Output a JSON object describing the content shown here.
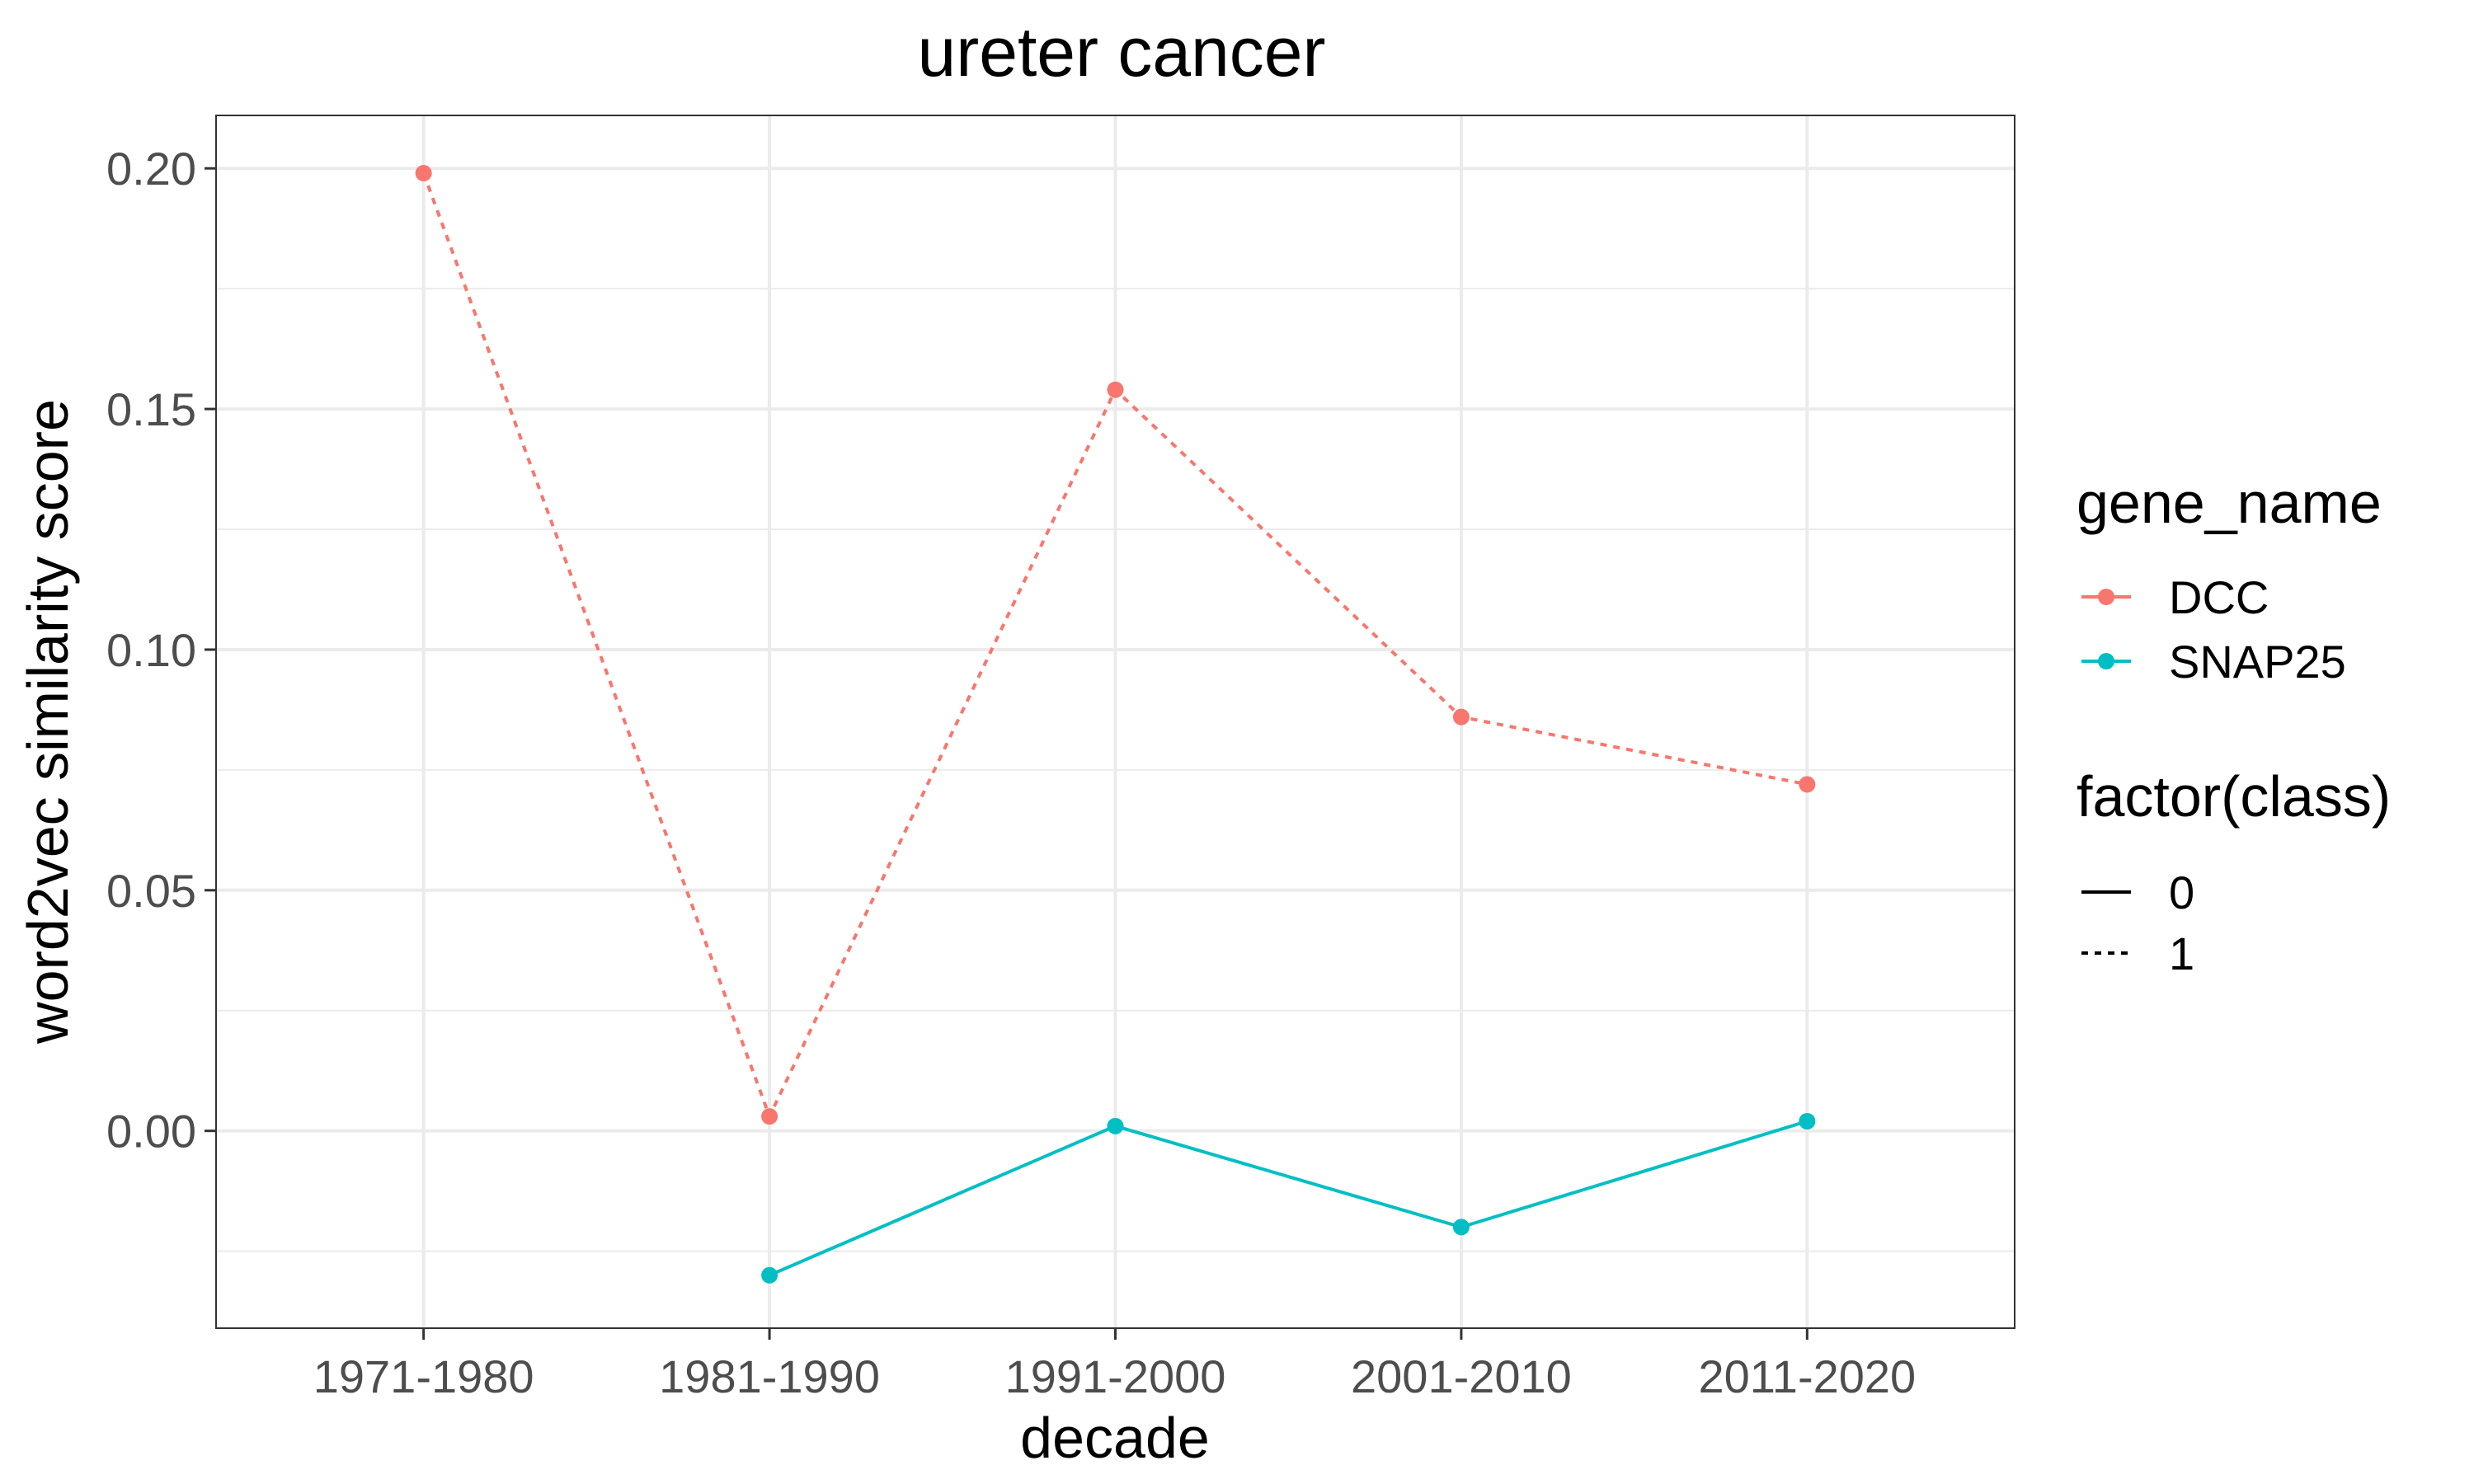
{
  "chart_data": {
    "type": "line",
    "title": "ureter cancer",
    "xlabel": "decade",
    "ylabel": "word2vec similarity score",
    "categories": [
      "1971-1980",
      "1981-1990",
      "1991-2000",
      "2001-2010",
      "2011-2020"
    ],
    "ylim": [
      -0.041,
      0.211
    ],
    "y_ticks": [
      0.0,
      0.05,
      0.1,
      0.15,
      0.2
    ],
    "y_tick_labels": [
      "0.00",
      "0.05",
      "0.10",
      "0.15",
      "0.20"
    ],
    "grid": true,
    "legend_position": "right",
    "series": [
      {
        "name": "DCC",
        "color": "#F8766D",
        "class": "1",
        "values": [
          0.199,
          0.003,
          0.154,
          0.086,
          0.072
        ]
      },
      {
        "name": "SNAP25",
        "color": "#00BFC4",
        "class": "0",
        "values": [
          null,
          -0.03,
          0.001,
          -0.02,
          0.002
        ]
      }
    ],
    "legends": {
      "color": {
        "title": "gene_name",
        "entries": [
          "DCC",
          "SNAP25"
        ],
        "colors": [
          "#F8766D",
          "#00BFC4"
        ]
      },
      "linetype": {
        "title": "factor(class)",
        "entries": [
          "0",
          "1"
        ],
        "styles": [
          "solid",
          "dotted"
        ]
      }
    }
  }
}
